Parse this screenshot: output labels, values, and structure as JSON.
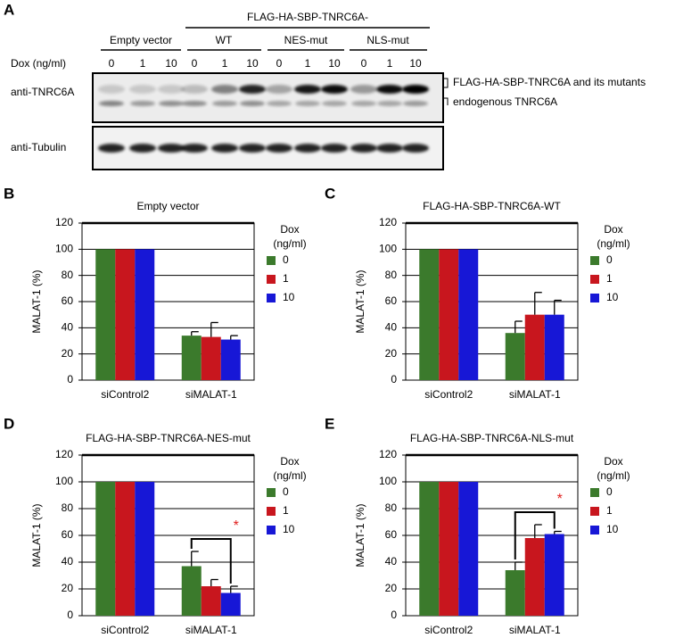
{
  "blot": {
    "panel_label": "A",
    "header": "FLAG-HA-SBP-TNRC6A-",
    "groups": [
      "Empty vector",
      "WT",
      "NES-mut",
      "NLS-mut"
    ],
    "dox_label": "Dox (ng/ml)",
    "dox_values": [
      0,
      1,
      10
    ],
    "rows": [
      "anti-TNRC6A",
      "anti-Tubulin"
    ],
    "band_labels": [
      "FLAG-HA-SBP-TNRC6A and its mutants",
      "endogenous TNRC6A"
    ]
  },
  "chart_data": [
    {
      "type": "bar",
      "panel_label": "B",
      "title": "Empty vector",
      "y_label": "MALAT-1 (%)",
      "categories": [
        "siControl2",
        "siMALAT-1"
      ],
      "legend_title": [
        "Dox",
        "(ng/ml)"
      ],
      "series": [
        {
          "name": "0",
          "color": "#3b7a2c",
          "values": [
            100,
            34
          ],
          "errors": [
            0,
            3
          ]
        },
        {
          "name": "1",
          "color": "#c8161e",
          "values": [
            100,
            33
          ],
          "errors": [
            0,
            11
          ]
        },
        {
          "name": "10",
          "color": "#1717d6",
          "values": [
            100,
            31
          ],
          "errors": [
            0,
            3
          ]
        }
      ],
      "ylim": [
        0,
        120
      ],
      "yticks": [
        0,
        20,
        40,
        60,
        80,
        100,
        120
      ],
      "grid": true
    },
    {
      "type": "bar",
      "panel_label": "C",
      "title": "FLAG-HA-SBP-TNRC6A-WT",
      "y_label": "MALAT-1 (%)",
      "categories": [
        "siControl2",
        "siMALAT-1"
      ],
      "legend_title": [
        "Dox",
        "(ng/ml)"
      ],
      "series": [
        {
          "name": "0",
          "color": "#3b7a2c",
          "values": [
            100,
            36
          ],
          "errors": [
            0,
            9
          ]
        },
        {
          "name": "1",
          "color": "#c8161e",
          "values": [
            100,
            50
          ],
          "errors": [
            0,
            17
          ]
        },
        {
          "name": "10",
          "color": "#1717d6",
          "values": [
            100,
            50
          ],
          "errors": [
            0,
            11
          ]
        }
      ],
      "ylim": [
        0,
        120
      ],
      "yticks": [
        0,
        20,
        40,
        60,
        80,
        100,
        120
      ],
      "grid": true
    },
    {
      "type": "bar",
      "panel_label": "D",
      "title": "FLAG-HA-SBP-TNRC6A-NES-mut",
      "y_label": "MALAT-1 (%)",
      "categories": [
        "siControl2",
        "siMALAT-1"
      ],
      "legend_title": [
        "Dox",
        "(ng/ml)"
      ],
      "series": [
        {
          "name": "0",
          "color": "#3b7a2c",
          "values": [
            100,
            37
          ],
          "errors": [
            0,
            11
          ]
        },
        {
          "name": "1",
          "color": "#c8161e",
          "values": [
            100,
            22
          ],
          "errors": [
            0,
            5
          ]
        },
        {
          "name": "10",
          "color": "#1717d6",
          "values": [
            100,
            17
          ],
          "errors": [
            0,
            5
          ]
        }
      ],
      "ylim": [
        0,
        120
      ],
      "yticks": [
        0,
        20,
        40,
        60,
        80,
        100,
        120
      ],
      "grid": true,
      "annotation": "*"
    },
    {
      "type": "bar",
      "panel_label": "E",
      "title": "FLAG-HA-SBP-TNRC6A-NLS-mut",
      "y_label": "MALAT-1 (%)",
      "categories": [
        "siControl2",
        "siMALAT-1"
      ],
      "legend_title": [
        "Dox",
        "(ng/ml)"
      ],
      "series": [
        {
          "name": "0",
          "color": "#3b7a2c",
          "values": [
            100,
            34
          ],
          "errors": [
            0,
            6
          ]
        },
        {
          "name": "1",
          "color": "#c8161e",
          "values": [
            100,
            58
          ],
          "errors": [
            0,
            10
          ]
        },
        {
          "name": "10",
          "color": "#1717d6",
          "values": [
            100,
            61
          ],
          "errors": [
            0,
            2
          ]
        }
      ],
      "ylim": [
        0,
        120
      ],
      "yticks": [
        0,
        20,
        40,
        60,
        80,
        100,
        120
      ],
      "grid": true,
      "annotation": "*"
    }
  ]
}
